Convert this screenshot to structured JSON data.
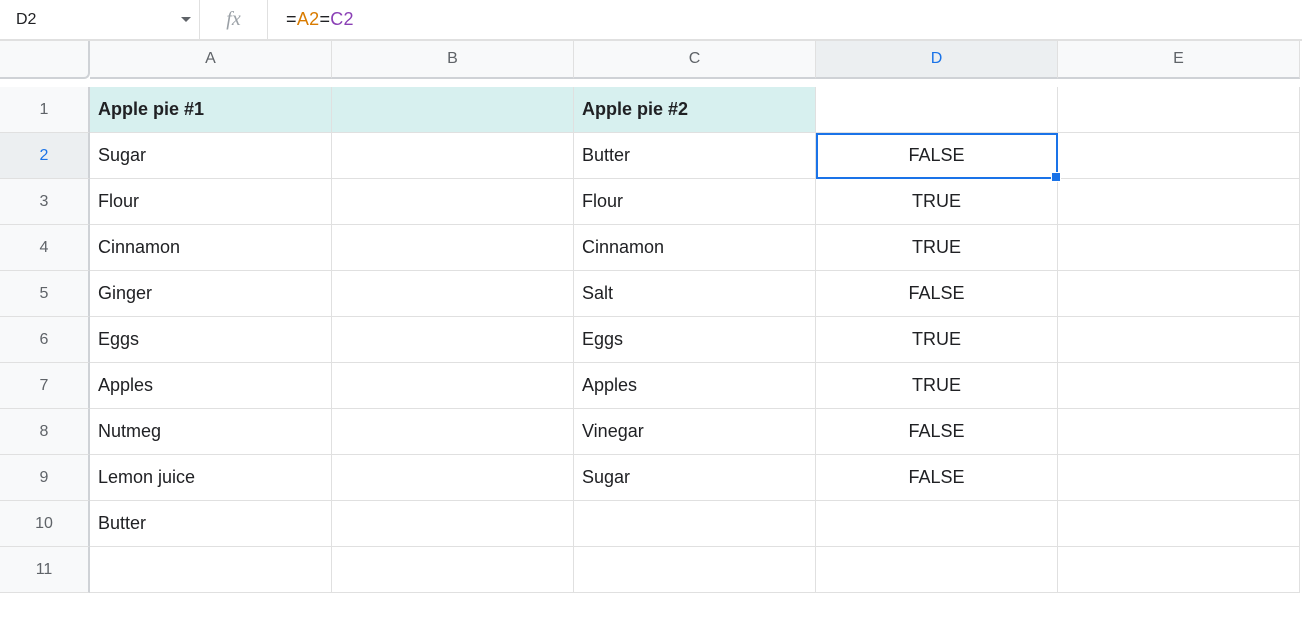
{
  "formula_bar": {
    "cell_ref": "D2",
    "formula_eq": "=",
    "formula_ref1": "A2",
    "formula_mid": "=",
    "formula_ref2": "C2"
  },
  "colors": {
    "header_cell_bg": "#d7f0ef",
    "selection_border": "#1a73e8",
    "grid_line": "#e0e0e0"
  },
  "grid": {
    "columns": [
      "A",
      "B",
      "C",
      "D",
      "E"
    ],
    "active_column": "D",
    "active_row": "2",
    "rows": [
      "1",
      "2",
      "3",
      "4",
      "5",
      "6",
      "7",
      "8",
      "9",
      "10",
      "11"
    ],
    "headers": {
      "A1": "Apple pie #1",
      "C1": "Apple pie #2"
    },
    "colA": [
      "Sugar",
      "Flour",
      "Cinnamon",
      "Ginger",
      "Eggs",
      "Apples",
      "Nutmeg",
      "Lemon juice",
      "Butter"
    ],
    "colC": [
      "Butter",
      "Flour",
      "Cinnamon",
      "Salt",
      "Eggs",
      "Apples",
      "Vinegar",
      "Sugar"
    ],
    "colD": [
      "FALSE",
      "TRUE",
      "TRUE",
      "FALSE",
      "TRUE",
      "TRUE",
      "FALSE",
      "FALSE"
    ]
  },
  "fonts": {
    "cell_fontsize_pt": 14,
    "header_fontsize_pt": 14
  }
}
